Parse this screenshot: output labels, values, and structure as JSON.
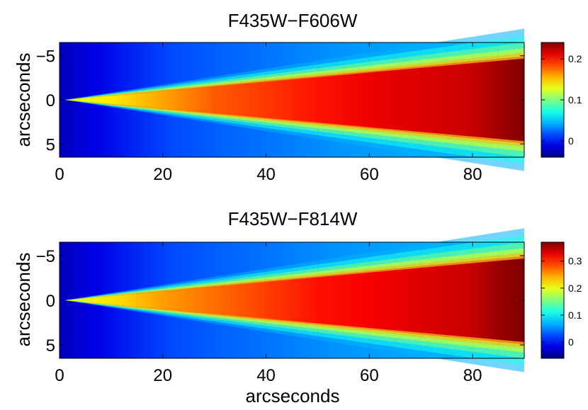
{
  "chart_data": [
    {
      "type": "heatmap",
      "title": "F435W−F606W",
      "xlabel": "",
      "ylabel": "arcseconds",
      "xlim": [
        0,
        90
      ],
      "ylim": [
        6.5,
        -6.5
      ],
      "y_reversed": true,
      "xticks": [
        0,
        20,
        40,
        60,
        80
      ],
      "xtick_labels": [
        "0",
        "20",
        "40",
        "60",
        "80"
      ],
      "yticks": [
        -5,
        0,
        5
      ],
      "ytick_labels": [
        "−5",
        "0",
        "5"
      ],
      "colormap": "jet",
      "clim": [
        -0.04,
        0.24
      ],
      "colorbar_ticks": [
        0,
        0.1,
        0.2
      ],
      "colorbar_tick_labels": [
        "0",
        "0.1",
        "0.2"
      ],
      "color_range": {
        "min": -0.04,
        "max": 0.24
      },
      "cone_center_value": [
        0.13,
        0.14,
        0.16,
        0.18,
        0.19,
        0.2,
        0.21,
        0.215,
        0.22,
        0.23,
        0.24
      ],
      "cone_center_x": [
        3,
        10,
        20,
        30,
        40,
        50,
        60,
        70,
        80,
        85,
        90
      ]
    },
    {
      "type": "heatmap",
      "title": "F435W−F814W",
      "xlabel": "arcseconds",
      "ylabel": "arcseconds",
      "xlim": [
        0,
        90
      ],
      "ylim": [
        6.5,
        -6.5
      ],
      "y_reversed": true,
      "xticks": [
        0,
        20,
        40,
        60,
        80
      ],
      "xtick_labels": [
        "0",
        "20",
        "40",
        "60",
        "80"
      ],
      "yticks": [
        -5,
        0,
        5
      ],
      "ytick_labels": [
        "−5",
        "0",
        "5"
      ],
      "colormap": "jet",
      "clim": [
        -0.06,
        0.37
      ],
      "colorbar_ticks": [
        0,
        0.1,
        0.2,
        0.3
      ],
      "colorbar_tick_labels": [
        "0",
        "0.1",
        "0.2",
        "0.3"
      ],
      "color_range": {
        "min": -0.06,
        "max": 0.37
      },
      "cone_center_value": [
        0.2,
        0.22,
        0.25,
        0.27,
        0.29,
        0.31,
        0.32,
        0.33,
        0.34,
        0.36,
        0.37
      ],
      "cone_center_x": [
        3,
        10,
        20,
        30,
        40,
        50,
        60,
        70,
        80,
        85,
        90
      ]
    }
  ]
}
